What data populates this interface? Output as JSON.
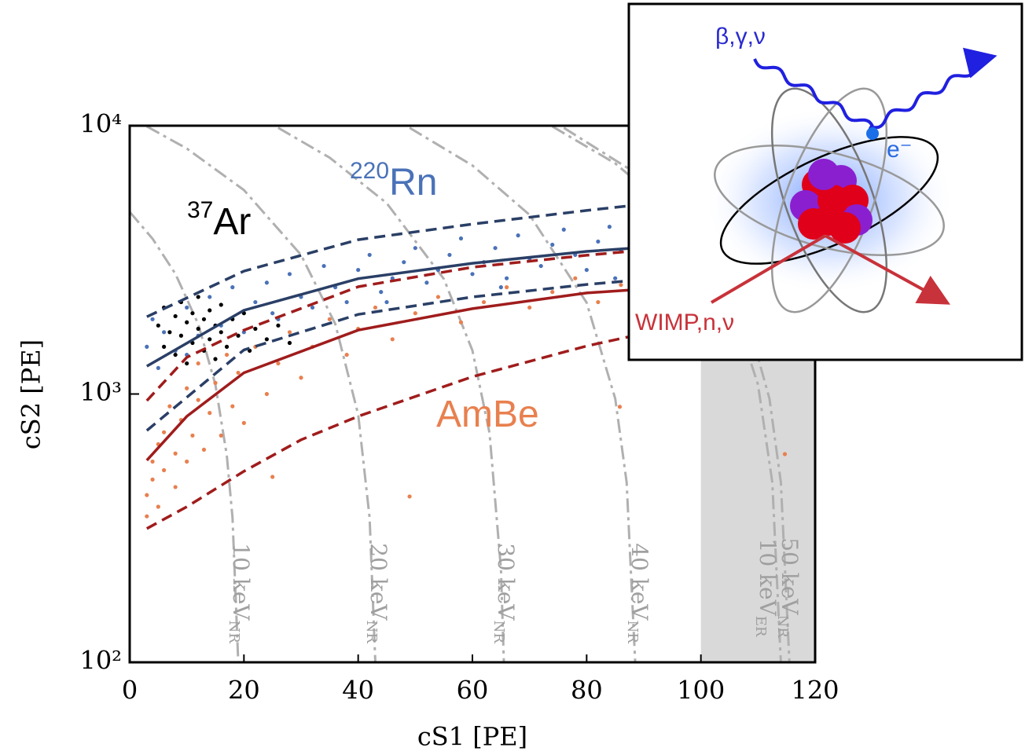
{
  "chart_data": {
    "type": "scatter",
    "x_label": "cS1 [PE]",
    "y_label": "cS2 [PE]",
    "xlim": [
      0,
      120
    ],
    "ylim": [
      100,
      10000
    ],
    "y_scale": "log",
    "xticks": [
      0,
      20,
      40,
      60,
      80,
      100,
      120
    ],
    "yticks": [
      {
        "value": 100,
        "label": "10²"
      },
      {
        "value": 1000,
        "label": "10³"
      },
      {
        "value": 10000,
        "label": "10⁴"
      }
    ],
    "shaded_region": [
      100,
      120
    ],
    "shaded_color": "#d9d9d9",
    "contours": [
      {
        "name": "10 keV",
        "sub": "NR",
        "color": "#b0b0b0",
        "x": [
          0,
          4,
          8,
          12,
          15,
          17,
          18,
          19
        ],
        "values": [
          4774,
          3790,
          2806,
          1822,
          1084,
          592,
          346,
          100
        ]
      },
      {
        "name": "20 keV",
        "sub": "NR",
        "color": "#b0b0b0",
        "x": [
          3,
          10,
          20,
          30,
          36,
          40,
          42,
          43
        ],
        "values": [
          9940,
          8218,
          5758,
          3298,
          1822,
          838,
          346,
          100
        ]
      },
      {
        "name": "30 keV",
        "sub": "NR",
        "color": "#b0b0b0",
        "x": [
          26,
          35,
          45,
          55,
          60,
          63,
          65,
          65.5
        ],
        "values": [
          9817,
          7603,
          5143,
          2683,
          1453,
          715,
          223,
          100
        ]
      },
      {
        "name": "40 keV",
        "sub": "NR",
        "color": "#b0b0b0",
        "x": [
          49,
          60,
          70,
          80,
          85,
          87,
          88.5
        ],
        "values": [
          9817,
          7111,
          4651,
          2191,
          961,
          469,
          100
        ]
      },
      {
        "name": "50 keV",
        "sub": "NR",
        "color": "#b0b0b0",
        "x": [
          74,
          85,
          95,
          105,
          110,
          112.5,
          114
        ],
        "values": [
          9940,
          7234,
          4774,
          2314,
          1084,
          469,
          100
        ]
      },
      {
        "name": "10 keV",
        "sub": "ER",
        "color": "#b0b0b0",
        "x": [
          76,
          90,
          100,
          108,
          112,
          114,
          115.5
        ],
        "values": [
          9817,
          6373,
          3913,
          1945,
          961,
          469,
          100
        ]
      }
    ],
    "bands": [
      {
        "color": "#2a3f66",
        "dash": "solid",
        "x": [
          3,
          20,
          40,
          60,
          80,
          90
        ],
        "values": [
          1270,
          2050,
          2690,
          3070,
          3400,
          3520
        ]
      },
      {
        "color": "#2a3f66",
        "dash": "dashed",
        "x": [
          3,
          20,
          40,
          60,
          80,
          90
        ],
        "values": [
          1940,
          2870,
          3760,
          4300,
          4830,
          5100
        ]
      },
      {
        "color": "#2a3f66",
        "dash": "dashed",
        "x": [
          3,
          20,
          40,
          60,
          80,
          90
        ],
        "values": [
          731,
          1460,
          1980,
          2300,
          2560,
          2670
        ]
      },
      {
        "color": "#a01c1c",
        "dash": "solid",
        "x": [
          3,
          10,
          20,
          40,
          60,
          80,
          90
        ],
        "values": [
          566,
          826,
          1200,
          1730,
          2080,
          2380,
          2460
        ]
      },
      {
        "color": "#a01c1c",
        "dash": "dashed",
        "x": [
          3,
          10,
          20,
          40,
          60,
          80,
          90
        ],
        "values": [
          944,
          1370,
          1730,
          2510,
          2970,
          3290,
          3440
        ]
      },
      {
        "color": "#a01c1c",
        "dash": "dashed",
        "x": [
          3,
          10,
          20,
          30,
          40,
          60,
          80,
          90
        ],
        "values": [
          315,
          380,
          515,
          675,
          826,
          1160,
          1510,
          1680
        ]
      }
    ],
    "series": [
      {
        "name": "AmBe",
        "color": "#e8804f",
        "x": [
          3,
          3,
          4,
          4,
          5,
          5,
          6,
          6,
          7,
          8,
          8,
          9,
          10,
          10,
          11,
          12,
          12,
          13,
          14,
          15,
          16,
          17,
          18,
          19,
          20,
          22,
          24,
          26,
          28,
          30,
          32,
          35,
          38,
          40,
          43,
          46,
          50,
          54,
          58,
          62,
          66,
          70,
          74,
          78,
          82,
          86,
          90,
          25,
          49,
          85.8,
          114.7,
          95
        ],
        "values": [
          420,
          350,
          560,
          480,
          650,
          380,
          720,
          520,
          900,
          600,
          450,
          800,
          1050,
          560,
          700,
          950,
          1300,
          620,
          850,
          1100,
          700,
          1400,
          900,
          1200,
          780,
          1500,
          1000,
          1300,
          1700,
          1150,
          1500,
          1900,
          1400,
          1750,
          2100,
          1600,
          2000,
          2300,
          1850,
          2200,
          2500,
          2100,
          2400,
          2700,
          2200,
          2550,
          2400,
          491,
          415,
          896,
          597,
          2800
        ]
      },
      {
        "name": "Rn",
        "sup": "220",
        "color": "#4a72b8",
        "x": [
          3,
          4,
          5,
          6,
          8,
          10,
          12,
          14,
          16,
          18,
          20,
          22,
          24,
          26,
          28,
          30,
          32,
          34,
          36,
          38,
          40,
          42,
          44,
          46,
          48,
          50,
          52,
          54,
          56,
          58,
          60,
          62,
          64,
          66,
          68,
          70,
          72,
          74,
          76,
          78,
          80,
          82,
          84,
          86,
          88,
          90,
          10,
          25,
          45,
          65,
          85
        ],
        "values": [
          1500,
          1900,
          1250,
          1700,
          1450,
          2100,
          1650,
          2300,
          1800,
          2500,
          1700,
          2200,
          2600,
          1900,
          2800,
          2300,
          2100,
          3000,
          2500,
          2200,
          2900,
          3300,
          2400,
          2700,
          3100,
          3500,
          2600,
          2900,
          3300,
          3800,
          2800,
          3100,
          3500,
          2700,
          3900,
          3200,
          3000,
          3600,
          4100,
          3300,
          2900,
          3700,
          4200,
          3400,
          3100,
          3800,
          1400,
          2000,
          2200,
          2500,
          2700
        ]
      },
      {
        "name": "Ar",
        "sup": "37",
        "color": "#000000",
        "x": [
          5,
          6,
          6,
          7,
          8,
          8,
          9,
          9,
          10,
          10,
          11,
          11,
          12,
          12,
          13,
          13,
          14,
          14,
          15,
          15,
          16,
          16,
          17,
          18,
          19,
          20,
          21,
          22,
          24,
          26,
          28
        ],
        "values": [
          1800,
          1500,
          2100,
          1700,
          1950,
          1400,
          2200,
          1650,
          1850,
          1300,
          2000,
          1550,
          2300,
          1750,
          1450,
          1900,
          2050,
          1600,
          1800,
          1350,
          2150,
          1700,
          1500,
          1900,
          1650,
          2000,
          1450,
          1750,
          1600,
          1800,
          1550
        ]
      }
    ]
  },
  "inset": {
    "labels": [
      {
        "text": "β,γ,ν",
        "color": "#2a2ad0"
      },
      {
        "text": "e⁻",
        "color": "#2a6ae0"
      },
      {
        "text": "WIMP,n,ν",
        "color": "#c8323a"
      }
    ]
  }
}
